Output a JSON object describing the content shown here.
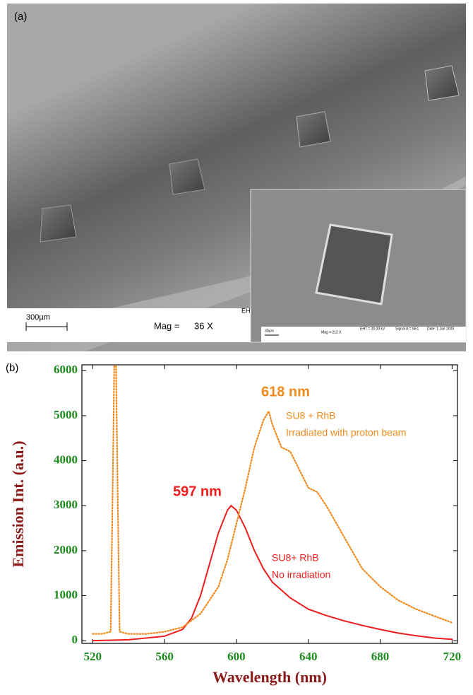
{
  "panel_a": {
    "label": "(a)",
    "scale_bar": "300µm",
    "mag_label": "Mag =",
    "mag_value": "36 X",
    "corner_text": "EH",
    "inset": {
      "scale_bar": "30µm",
      "mag": "Mag =  212 X",
      "eht": "EHT = 20.00 kV",
      "signal": "Signal A = SE1",
      "date": "Date :1 Jan 2000"
    }
  },
  "chart_data": {
    "type": "line",
    "panel_label": "(b)",
    "x_label": "Wavelength (nm)",
    "y_label": "Emission Int. (a.u.)",
    "xlim": [
      514,
      723
    ],
    "ylim": [
      -60,
      6130
    ],
    "xticks": [
      520,
      560,
      600,
      640,
      680,
      720
    ],
    "yticks": [
      0,
      1000,
      2000,
      3000,
      4000,
      5000,
      6000
    ],
    "annotations": [
      {
        "text": "618 nm",
        "color": "#f08a1c"
      },
      {
        "text": "SU8 + RhB",
        "color": "#f08a1c"
      },
      {
        "text": "Irradiated with proton beam",
        "color": "#f08a1c"
      },
      {
        "text": "597 nm",
        "color": "#ee1c1c"
      },
      {
        "text": "SU8+ RhB",
        "color": "#ee1c1c"
      },
      {
        "text": "No irradiation",
        "color": "#ee1c1c"
      }
    ],
    "series": [
      {
        "color": "#ee1c1c",
        "dotted": false,
        "x": [
          520,
          540,
          560,
          570,
          575,
          580,
          585,
          590,
          595,
          597,
          600,
          605,
          610,
          615,
          620,
          630,
          640,
          650,
          660,
          670,
          680,
          690,
          700,
          710,
          720
        ],
        "values": [
          0,
          20,
          100,
          250,
          500,
          1000,
          1700,
          2400,
          2900,
          3000,
          2900,
          2500,
          2000,
          1600,
          1300,
          950,
          700,
          560,
          440,
          340,
          250,
          170,
          110,
          60,
          30
        ]
      },
      {
        "color": "#f08a1c",
        "dotted": true,
        "x": [
          520,
          525,
          530,
          531,
          532,
          533,
          534,
          535,
          540,
          550,
          560,
          570,
          580,
          590,
          595,
          600,
          605,
          610,
          615,
          618,
          620,
          625,
          630,
          635,
          640,
          645,
          650,
          660,
          670,
          680,
          690,
          700,
          710,
          720
        ],
        "values": [
          150,
          150,
          200,
          3000,
          6100,
          6100,
          3000,
          200,
          150,
          150,
          200,
          300,
          600,
          1200,
          1800,
          2600,
          3400,
          4300,
          4900,
          5100,
          4800,
          4300,
          4200,
          3800,
          3400,
          3300,
          3000,
          2300,
          1600,
          1200,
          900,
          700,
          550,
          400
        ]
      }
    ]
  }
}
